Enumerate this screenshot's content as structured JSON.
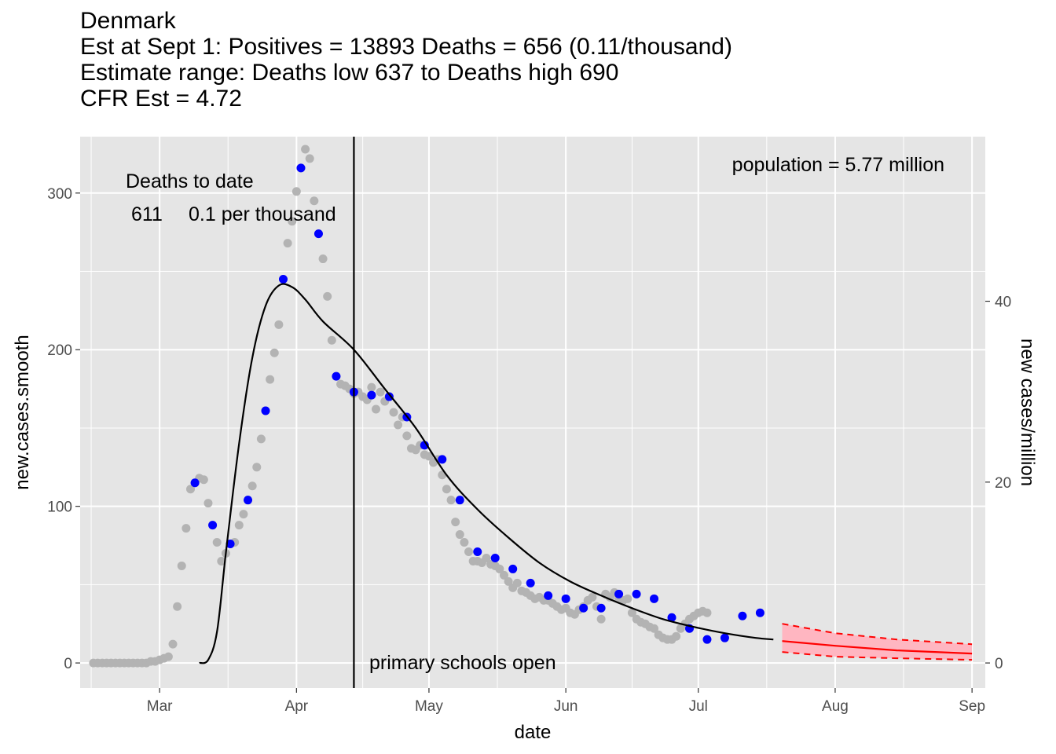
{
  "titles": {
    "line1": "Denmark",
    "line2": "Est at Sept 1: Positives = 13893 Deaths = 656 (0.11/thousand)",
    "line3": "Estimate range: Deaths low 637 to Deaths high 690",
    "line4": "CFR Est = 4.72"
  },
  "chart_data": {
    "type": "scatter",
    "xlabel": "date",
    "ylabel": "new.cases.smooth",
    "y2label": "new cases/million",
    "ylim": [
      -16,
      336
    ],
    "y2lim": [
      -2.77,
      58.2
    ],
    "x_ticks": [
      {
        "label": "Mar",
        "date": "2020-03-01"
      },
      {
        "label": "Apr",
        "date": "2020-04-01"
      },
      {
        "label": "May",
        "date": "2020-05-01"
      },
      {
        "label": "Jun",
        "date": "2020-06-01"
      },
      {
        "label": "Jul",
        "date": "2020-07-01"
      },
      {
        "label": "Aug",
        "date": "2020-08-01"
      },
      {
        "label": "Sep",
        "date": "2020-09-01"
      }
    ],
    "y_ticks": [
      0,
      100,
      200,
      300
    ],
    "y2_ticks": [
      0,
      20,
      40
    ],
    "colors": {
      "panel": "#e5e5e5",
      "grid": "#ffffff",
      "gray_points": "#b3b3b3",
      "blue_points": "#0000ff",
      "fit_line": "#000000",
      "forecast": "#ff0000",
      "forecast_band": "#ffb6c1"
    },
    "series": [
      {
        "name": "daily",
        "color": "#b3b3b3",
        "points": [
          [
            "2020-02-15",
            0
          ],
          [
            "2020-02-16",
            0
          ],
          [
            "2020-02-17",
            0
          ],
          [
            "2020-02-18",
            0
          ],
          [
            "2020-02-19",
            0
          ],
          [
            "2020-02-20",
            0
          ],
          [
            "2020-02-21",
            0
          ],
          [
            "2020-02-22",
            0
          ],
          [
            "2020-02-23",
            0
          ],
          [
            "2020-02-24",
            0
          ],
          [
            "2020-02-25",
            0
          ],
          [
            "2020-02-26",
            0
          ],
          [
            "2020-02-27",
            0
          ],
          [
            "2020-02-28",
            1
          ],
          [
            "2020-02-29",
            1
          ],
          [
            "2020-03-01",
            2
          ],
          [
            "2020-03-02",
            3
          ],
          [
            "2020-03-03",
            4
          ],
          [
            "2020-03-04",
            12
          ],
          [
            "2020-03-05",
            36
          ],
          [
            "2020-03-06",
            62
          ],
          [
            "2020-03-07",
            86
          ],
          [
            "2020-03-08",
            111
          ],
          [
            "2020-03-09",
            115
          ],
          [
            "2020-03-10",
            118
          ],
          [
            "2020-03-11",
            117
          ],
          [
            "2020-03-12",
            102
          ],
          [
            "2020-03-13",
            88
          ],
          [
            "2020-03-14",
            77
          ],
          [
            "2020-03-15",
            65
          ],
          [
            "2020-03-16",
            70
          ],
          [
            "2020-03-17",
            76
          ],
          [
            "2020-03-18",
            77
          ],
          [
            "2020-03-19",
            88
          ],
          [
            "2020-03-20",
            95
          ],
          [
            "2020-03-21",
            104
          ],
          [
            "2020-03-22",
            113
          ],
          [
            "2020-03-23",
            125
          ],
          [
            "2020-03-24",
            143
          ],
          [
            "2020-03-25",
            161
          ],
          [
            "2020-03-26",
            181
          ],
          [
            "2020-03-27",
            198
          ],
          [
            "2020-03-28",
            216
          ],
          [
            "2020-03-29",
            245
          ],
          [
            "2020-03-30",
            268
          ],
          [
            "2020-03-31",
            282
          ],
          [
            "2020-04-01",
            301
          ],
          [
            "2020-04-02",
            316
          ],
          [
            "2020-04-03",
            328
          ],
          [
            "2020-04-04",
            322
          ],
          [
            "2020-04-05",
            295
          ],
          [
            "2020-04-06",
            274
          ],
          [
            "2020-04-07",
            258
          ],
          [
            "2020-04-08",
            234
          ],
          [
            "2020-04-09",
            206
          ],
          [
            "2020-04-10",
            183
          ],
          [
            "2020-04-11",
            178
          ],
          [
            "2020-04-12",
            177
          ],
          [
            "2020-04-13",
            175
          ],
          [
            "2020-04-14",
            172
          ],
          [
            "2020-04-15",
            173
          ],
          [
            "2020-04-16",
            170
          ],
          [
            "2020-04-17",
            168
          ],
          [
            "2020-04-18",
            176
          ],
          [
            "2020-04-19",
            162
          ],
          [
            "2020-04-20",
            173
          ],
          [
            "2020-04-21",
            167
          ],
          [
            "2020-04-22",
            170
          ],
          [
            "2020-04-23",
            160
          ],
          [
            "2020-04-24",
            152
          ],
          [
            "2020-04-25",
            157
          ],
          [
            "2020-04-26",
            145
          ],
          [
            "2020-04-27",
            137
          ],
          [
            "2020-04-28",
            136
          ],
          [
            "2020-04-29",
            139
          ],
          [
            "2020-04-30",
            133
          ],
          [
            "2020-05-01",
            132
          ],
          [
            "2020-05-02",
            128
          ],
          [
            "2020-05-03",
            130
          ],
          [
            "2020-05-04",
            120
          ],
          [
            "2020-05-05",
            111
          ],
          [
            "2020-05-06",
            104
          ],
          [
            "2020-05-07",
            90
          ],
          [
            "2020-05-08",
            82
          ],
          [
            "2020-05-09",
            77
          ],
          [
            "2020-05-10",
            71
          ],
          [
            "2020-05-11",
            65
          ],
          [
            "2020-05-12",
            65
          ],
          [
            "2020-05-13",
            64
          ],
          [
            "2020-05-14",
            67
          ],
          [
            "2020-05-15",
            63
          ],
          [
            "2020-05-16",
            62
          ],
          [
            "2020-05-17",
            60
          ],
          [
            "2020-05-18",
            56
          ],
          [
            "2020-05-19",
            52
          ],
          [
            "2020-05-20",
            48
          ],
          [
            "2020-05-21",
            51
          ],
          [
            "2020-05-22",
            46
          ],
          [
            "2020-05-23",
            45
          ],
          [
            "2020-05-24",
            43
          ],
          [
            "2020-05-25",
            41
          ],
          [
            "2020-05-26",
            42
          ],
          [
            "2020-05-27",
            40
          ],
          [
            "2020-05-28",
            40
          ],
          [
            "2020-05-29",
            38
          ],
          [
            "2020-05-30",
            36
          ],
          [
            "2020-05-31",
            34
          ],
          [
            "2020-06-01",
            35
          ],
          [
            "2020-06-02",
            32
          ],
          [
            "2020-06-03",
            31
          ],
          [
            "2020-06-04",
            34
          ],
          [
            "2020-06-05",
            36
          ],
          [
            "2020-06-06",
            40
          ],
          [
            "2020-06-07",
            42
          ],
          [
            "2020-06-08",
            36
          ],
          [
            "2020-06-09",
            28
          ],
          [
            "2020-06-10",
            44
          ],
          [
            "2020-06-11",
            42
          ],
          [
            "2020-06-12",
            45
          ],
          [
            "2020-06-13",
            41
          ],
          [
            "2020-06-14",
            40
          ],
          [
            "2020-06-15",
            41
          ],
          [
            "2020-06-16",
            32
          ],
          [
            "2020-06-17",
            28
          ],
          [
            "2020-06-18",
            26
          ],
          [
            "2020-06-19",
            25
          ],
          [
            "2020-06-20",
            23
          ],
          [
            "2020-06-21",
            22
          ],
          [
            "2020-06-22",
            18
          ],
          [
            "2020-06-23",
            16
          ],
          [
            "2020-06-24",
            15
          ],
          [
            "2020-06-25",
            15
          ],
          [
            "2020-06-26",
            17
          ],
          [
            "2020-06-27",
            22
          ],
          [
            "2020-06-28",
            25
          ],
          [
            "2020-06-29",
            28
          ],
          [
            "2020-06-30",
            30
          ],
          [
            "2020-07-01",
            32
          ],
          [
            "2020-07-02",
            33
          ],
          [
            "2020-07-03",
            32
          ]
        ]
      },
      {
        "name": "weekly",
        "color": "#0000ff",
        "points": [
          [
            "2020-03-09",
            115
          ],
          [
            "2020-03-13",
            88
          ],
          [
            "2020-03-17",
            76
          ],
          [
            "2020-03-21",
            104
          ],
          [
            "2020-03-25",
            161
          ],
          [
            "2020-03-29",
            245
          ],
          [
            "2020-04-02",
            316
          ],
          [
            "2020-04-06",
            274
          ],
          [
            "2020-04-10",
            183
          ],
          [
            "2020-04-14",
            173
          ],
          [
            "2020-04-18",
            171
          ],
          [
            "2020-04-22",
            170
          ],
          [
            "2020-04-26",
            157
          ],
          [
            "2020-04-30",
            139
          ],
          [
            "2020-05-04",
            130
          ],
          [
            "2020-05-08",
            104
          ],
          [
            "2020-05-12",
            71
          ],
          [
            "2020-05-16",
            67
          ],
          [
            "2020-05-20",
            60
          ],
          [
            "2020-05-24",
            51
          ],
          [
            "2020-05-28",
            43
          ],
          [
            "2020-06-01",
            41
          ],
          [
            "2020-06-05",
            35
          ],
          [
            "2020-06-09",
            35
          ],
          [
            "2020-06-13",
            44
          ],
          [
            "2020-06-17",
            44
          ],
          [
            "2020-06-21",
            41
          ],
          [
            "2020-06-25",
            29
          ],
          [
            "2020-06-29",
            22
          ],
          [
            "2020-07-03",
            15
          ],
          [
            "2020-07-07",
            16
          ],
          [
            "2020-07-11",
            30
          ],
          [
            "2020-07-15",
            32
          ]
        ]
      }
    ],
    "fit_curve": [
      [
        "2020-03-10",
        0
      ],
      [
        "2020-03-12",
        2
      ],
      [
        "2020-03-14",
        20
      ],
      [
        "2020-03-16",
        70
      ],
      [
        "2020-03-19",
        140
      ],
      [
        "2020-03-22",
        195
      ],
      [
        "2020-03-25",
        228
      ],
      [
        "2020-03-28",
        241
      ],
      [
        "2020-03-31",
        240
      ],
      [
        "2020-04-03",
        232
      ],
      [
        "2020-04-07",
        218
      ],
      [
        "2020-04-14",
        200
      ],
      [
        "2020-04-21",
        175
      ],
      [
        "2020-04-28",
        150
      ],
      [
        "2020-05-05",
        120
      ],
      [
        "2020-05-12",
        98
      ],
      [
        "2020-05-19",
        80
      ],
      [
        "2020-05-26",
        64
      ],
      [
        "2020-06-02",
        52
      ],
      [
        "2020-06-09",
        43
      ],
      [
        "2020-06-16",
        35
      ],
      [
        "2020-06-23",
        28
      ],
      [
        "2020-06-30",
        23
      ],
      [
        "2020-07-07",
        19
      ],
      [
        "2020-07-14",
        16
      ],
      [
        "2020-07-18",
        15
      ]
    ],
    "forecast": {
      "mid": [
        [
          "2020-07-20",
          14
        ],
        [
          "2020-08-01",
          11
        ],
        [
          "2020-08-15",
          8
        ],
        [
          "2020-09-01",
          6
        ]
      ],
      "high": [
        [
          "2020-07-20",
          25
        ],
        [
          "2020-08-01",
          19
        ],
        [
          "2020-08-15",
          15
        ],
        [
          "2020-09-01",
          12
        ]
      ],
      "low": [
        [
          "2020-07-20",
          7
        ],
        [
          "2020-08-01",
          4
        ],
        [
          "2020-08-15",
          3
        ],
        [
          "2020-09-01",
          2
        ]
      ]
    },
    "vline": {
      "date": "2020-04-14",
      "label": "primary schools open"
    }
  },
  "annotations": {
    "deaths_title": "Deaths to date",
    "deaths_count": "611",
    "deaths_rate": "0.1 per thousand",
    "population": "population = 5.77 million"
  }
}
